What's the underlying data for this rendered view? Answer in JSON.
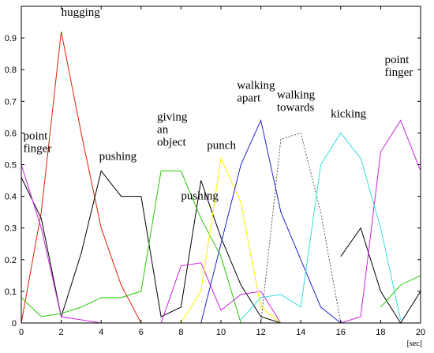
{
  "chart_data": {
    "type": "line",
    "x": [
      0,
      1,
      2,
      3,
      4,
      5,
      6,
      7,
      8,
      9,
      10,
      11,
      12,
      13,
      14,
      15,
      16,
      17,
      18,
      19,
      20
    ],
    "xlim": [
      0,
      20
    ],
    "ylim": [
      0,
      1
    ],
    "xticks": [
      0,
      2,
      4,
      6,
      8,
      10,
      12,
      14,
      16,
      18,
      20
    ],
    "yticks": [
      0,
      0.1,
      0.2,
      0.3,
      0.4,
      0.5,
      0.6,
      0.7,
      0.8,
      0.9
    ],
    "x_unit": "[sec]",
    "grid": false,
    "series": [
      {
        "color": "#dd2200",
        "dash": false,
        "values": [
          0,
          0.35,
          0.92,
          0.6,
          0.3,
          0.12,
          0,
          null,
          null,
          null,
          null,
          null,
          null,
          null,
          null,
          null,
          null,
          null,
          null,
          null,
          null
        ]
      },
      {
        "color": "#000000",
        "dash": false,
        "values": [
          0.46,
          0.33,
          0.02,
          0.22,
          0.48,
          0.4,
          0.4,
          0.02,
          0.05,
          0.45,
          0.27,
          0.12,
          0.02,
          0,
          null,
          null,
          0.21,
          0.3,
          0.1,
          0,
          0.1
        ]
      },
      {
        "color": "#22cc00",
        "dash": false,
        "values": [
          0.08,
          0.02,
          0.03,
          0.05,
          0.08,
          0.08,
          0.1,
          0.48,
          0.48,
          0.33,
          0.21,
          0,
          null,
          null,
          null,
          null,
          null,
          null,
          0.05,
          0.12,
          0.15
        ]
      },
      {
        "color": "#cc22dd",
        "dash": false,
        "values": [
          0.5,
          0.3,
          0.02,
          0.01,
          0,
          null,
          null,
          0,
          0.18,
          0.19,
          0.04,
          0.09,
          0.1,
          0,
          null,
          null,
          0,
          0.02,
          0.54,
          0.64,
          0.48
        ]
      },
      {
        "color": "#ffee00",
        "dash": false,
        "values": [
          null,
          null,
          null,
          null,
          null,
          null,
          null,
          null,
          0,
          0.1,
          0.52,
          0.38,
          0.05,
          0,
          null,
          null,
          null,
          null,
          null,
          null,
          null
        ]
      },
      {
        "color": "#2222cc",
        "dash": false,
        "values": [
          null,
          null,
          null,
          null,
          null,
          null,
          null,
          null,
          null,
          0,
          0.25,
          0.5,
          0.64,
          0.35,
          0.2,
          0.05,
          0,
          null,
          null,
          null,
          null
        ]
      },
      {
        "color": "#555555",
        "dash": true,
        "values": [
          null,
          null,
          null,
          null,
          null,
          null,
          null,
          null,
          null,
          null,
          null,
          null,
          0,
          0.58,
          0.6,
          0.35,
          0,
          null,
          null,
          null,
          null
        ]
      },
      {
        "color": "#33dddd",
        "dash": false,
        "values": [
          null,
          null,
          null,
          null,
          null,
          null,
          null,
          null,
          null,
          null,
          null,
          0.01,
          0.08,
          0.09,
          0.05,
          0.5,
          0.6,
          0.52,
          0.3,
          0.01,
          null
        ]
      }
    ],
    "annotations": [
      {
        "lines": [
          "hugging"
        ],
        "x": 2.0,
        "y": 0.97
      },
      {
        "lines": [
          "point",
          "finger"
        ],
        "x": 0.1,
        "y": 0.58
      },
      {
        "lines": [
          "pushing"
        ],
        "x": 3.9,
        "y": 0.515
      },
      {
        "lines": [
          "giving",
          "an",
          "object"
        ],
        "x": 6.8,
        "y": 0.64
      },
      {
        "lines": [
          "pushing"
        ],
        "x": 8.0,
        "y": 0.39
      },
      {
        "lines": [
          "punch"
        ],
        "x": 9.3,
        "y": 0.55
      },
      {
        "lines": [
          "walking",
          "apart"
        ],
        "x": 10.8,
        "y": 0.74
      },
      {
        "lines": [
          "walking",
          "towards"
        ],
        "x": 12.8,
        "y": 0.71
      },
      {
        "lines": [
          "kicking"
        ],
        "x": 15.5,
        "y": 0.65
      },
      {
        "lines": [
          "point",
          "finger"
        ],
        "x": 18.2,
        "y": 0.82
      }
    ]
  }
}
